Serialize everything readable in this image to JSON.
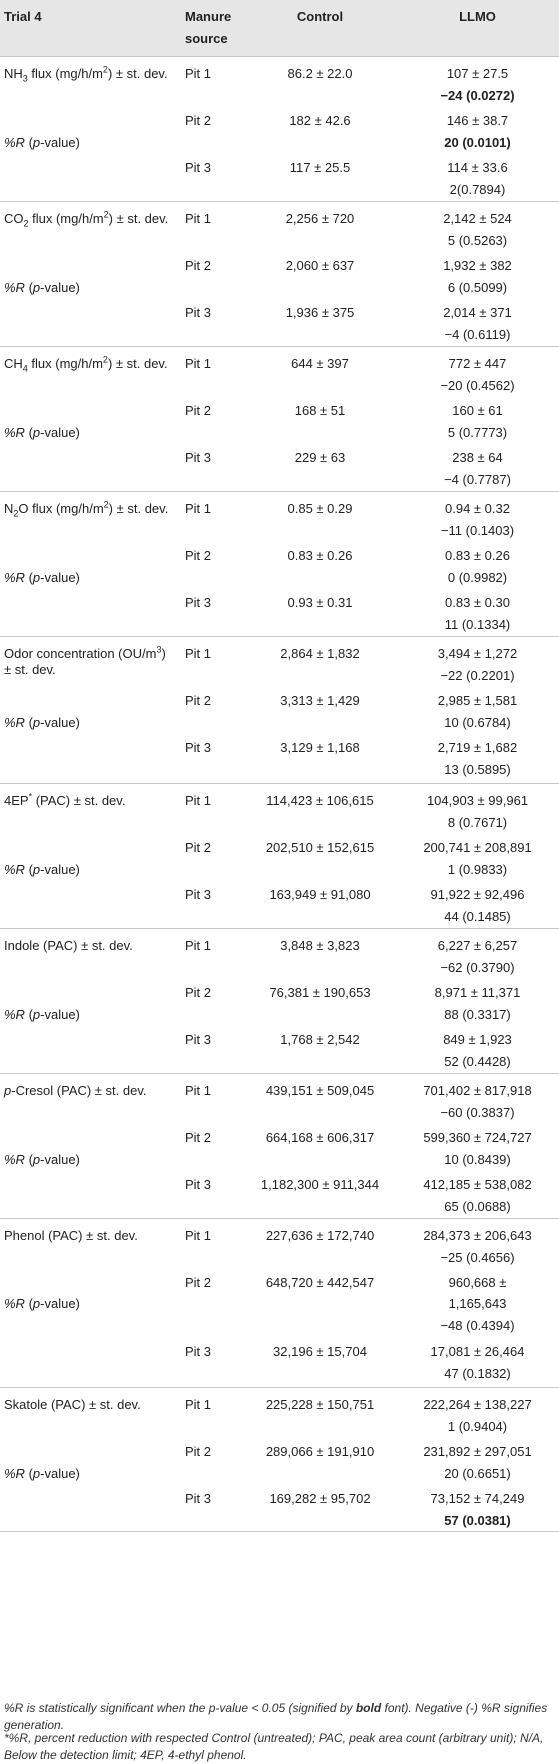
{
  "table": {
    "headers": {
      "trial": "Trial 4",
      "manure_line1": "Manure",
      "manure_line2": "source",
      "control": "Control",
      "llmo": "LLMO"
    },
    "groups": [
      {
        "param_html": "NH<sub>3</sub> flux (mg/h/m<sup>2</sup>) ± st. dev.",
        "rows": [
          {
            "pit": "Pit 1",
            "control": "86.2 ± 22.0",
            "llmo": "107 ± 27.5",
            "r": "−24 (0.0272)",
            "bold": true
          },
          {
            "pit": "Pit 2",
            "control": "182 ± 42.6",
            "llmo": "146 ± 38.7",
            "r": "20 (0.0101)",
            "bold": true
          },
          {
            "pit": "Pit 3",
            "control": "117 ± 25.5",
            "llmo": "114 ± 33.6",
            "r": "2(0.7894)",
            "bold": false
          }
        ]
      },
      {
        "param_html": "CO<sub>2</sub> flux (mg/h/m<sup>2</sup>) ± st. dev.",
        "rows": [
          {
            "pit": "Pit 1",
            "control": "2,256 ± 720",
            "llmo": "2,142 ± 524",
            "r": "5 (0.5263)",
            "bold": false
          },
          {
            "pit": "Pit 2",
            "control": "2,060 ± 637",
            "llmo": "1,932 ± 382",
            "r": "6 (0.5099)",
            "bold": false
          },
          {
            "pit": "Pit 3",
            "control": "1,936 ± 375",
            "llmo": "2,014 ± 371",
            "r": "−4 (0.6119)",
            "bold": false
          }
        ]
      },
      {
        "param_html": "CH<sub>4</sub> flux (mg/h/m<sup>2</sup>) ± st. dev.",
        "rows": [
          {
            "pit": "Pit 1",
            "control": "644 ± 397",
            "llmo": "772 ± 447",
            "r": "−20 (0.4562)",
            "bold": false
          },
          {
            "pit": "Pit 2",
            "control": "168 ± 51",
            "llmo": "160 ± 61",
            "r": "5 (0.7773)",
            "bold": false
          },
          {
            "pit": "Pit 3",
            "control": "229 ± 63",
            "llmo": "238 ± 64",
            "r": "−4 (0.7787)",
            "bold": false
          }
        ]
      },
      {
        "param_html": "N<sub>2</sub>O flux (mg/h/m<sup>2</sup>) ± st. dev.",
        "rows": [
          {
            "pit": "Pit 1",
            "control": "0.85 ± 0.29",
            "llmo": "0.94 ± 0.32",
            "r": "−11 (0.1403)",
            "bold": false
          },
          {
            "pit": "Pit 2",
            "control": "0.83 ± 0.26",
            "llmo": "0.83 ± 0.26",
            "r": "0 (0.9982)",
            "bold": false
          },
          {
            "pit": "Pit 3",
            "control": "0.93 ± 0.31",
            "llmo": "0.83 ± 0.30",
            "r": "11 (0.1334)",
            "bold": false
          }
        ]
      },
      {
        "param_html": "Odor concentration (OU/m<sup>3</sup>)<br>± st. dev.",
        "rows": [
          {
            "pit": "Pit 1",
            "control": "2,864 ± 1,832",
            "llmo": "3,494 ± 1,272",
            "r": "−22 (0.2201)",
            "bold": false
          },
          {
            "pit": "Pit 2",
            "control": "3,313 ± 1,429",
            "llmo": "2,985 ± 1,581",
            "r": "10 (0.6784)",
            "bold": false
          },
          {
            "pit": "Pit 3",
            "control": "3,129 ± 1,168",
            "llmo": "2,719 ± 1,682",
            "r": "13 (0.5895)",
            "bold": false
          }
        ]
      },
      {
        "param_html": "4EP<sup>*</sup> (PAC) ± st. dev.",
        "rows": [
          {
            "pit": "Pit 1",
            "control": "114,423 ± 106,615",
            "llmo": "104,903 ± 99,961",
            "r": "8 (0.7671)",
            "bold": false
          },
          {
            "pit": "Pit 2",
            "control": "202,510 ± 152,615",
            "llmo": "200,741 ± 208,891",
            "r": "1 (0.9833)",
            "bold": false
          },
          {
            "pit": "Pit 3",
            "control": "163,949 ± 91,080",
            "llmo": "91,922 ± 92,496",
            "r": "44 (0.1485)",
            "bold": false
          }
        ]
      },
      {
        "param_html": "Indole (PAC) ± st. dev.",
        "rows": [
          {
            "pit": "Pit 1",
            "control": "3,848 ± 3,823",
            "llmo": "6,227 ± 6,257",
            "r": "−62 (0.3790)",
            "bold": false
          },
          {
            "pit": "Pit 2",
            "control": "76,381 ± 190,653",
            "llmo": "8,971 ± 11,371",
            "r": "88 (0.3317)",
            "bold": false
          },
          {
            "pit": "Pit 3",
            "control": "1,768 ± 2,542",
            "llmo": "849 ± 1,923",
            "r": "52 (0.4428)",
            "bold": false
          }
        ]
      },
      {
        "param_html": "<i>p</i>-Cresol (PAC) ± st. dev.",
        "rows": [
          {
            "pit": "Pit 1",
            "control": "439,151 ± 509,045",
            "llmo": "701,402 ± 817,918",
            "r": "−60 (0.3837)",
            "bold": false
          },
          {
            "pit": "Pit 2",
            "control": "664,168 ± 606,317",
            "llmo": "599,360 ± 724,727",
            "r": "10 (0.8439)",
            "bold": false
          },
          {
            "pit": "Pit 3",
            "control": "1,182,300 ± 911,344",
            "llmo": "412,185 ± 538,082",
            "r": "65 (0.0688)",
            "bold": false
          }
        ]
      },
      {
        "param_html": "Phenol (PAC) ± st. dev.",
        "rows": [
          {
            "pit": "Pit 1",
            "control": "227,636 ± 172,740",
            "llmo": "284,373 ± 206,643",
            "r": "−25 (0.4656)",
            "bold": false
          },
          {
            "pit": "Pit 2",
            "control": "648,720 ± 442,547",
            "llmo": "960,668 ±",
            "llmo2": "1,165,643",
            "r": "−48 (0.4394)",
            "bold": false
          },
          {
            "pit": "Pit 3",
            "control": "32,196 ± 15,704",
            "llmo": "17,081 ± 26,464",
            "r": "47 (0.1832)",
            "bold": false
          }
        ]
      },
      {
        "param_html": "Skatole (PAC) ± st. dev.",
        "rows": [
          {
            "pit": "Pit 1",
            "control": "225,228 ± 150,751",
            "llmo": "222,264 ± 138,227",
            "r": "1 (0.9404)",
            "bold": false
          },
          {
            "pit": "Pit 2",
            "control": "289,066 ± 191,910",
            "llmo": "231,892 ± 297,051",
            "r": "20 (0.6651)",
            "bold": false
          },
          {
            "pit": "Pit 3",
            "control": "169,282 ± 95,702",
            "llmo": "73,152 ± 74,249",
            "r": "57 (0.0381)",
            "bold": true
          }
        ]
      }
    ],
    "r_label_html": "<i>%R</i> (<i>p</i>-value)"
  },
  "footnotes": {
    "note1_html": "%R is statistically significant when the p-value &lt; 0.05 (signified by <b>bold</b> font). Negative (-) %R signifies generation.",
    "note2_html": "*%R, percent reduction with respected Control (untreated); PAC, peak area count (arbitrary unit); N/A, Below the detection limit; 4EP, 4-ethyl phenol."
  }
}
